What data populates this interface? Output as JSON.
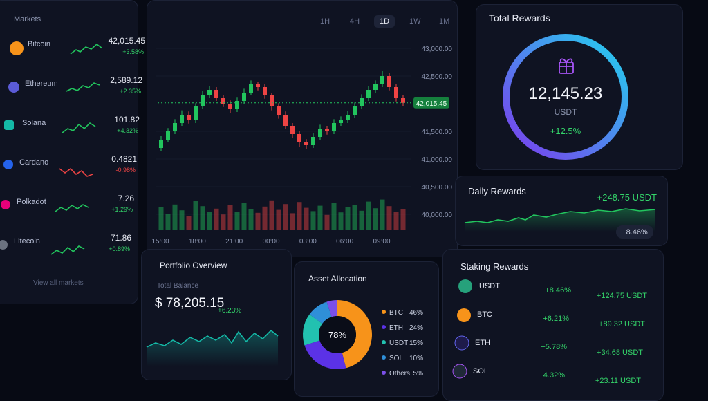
{
  "markets": {
    "title": "Markets",
    "items": [
      {
        "name": "Bitcoin",
        "price": "42,015.45",
        "change": "+3.58%"
      },
      {
        "name": "Ethereum",
        "price": "2,589.12",
        "change": "+2.35%"
      },
      {
        "name": "Solana",
        "price": "101.82",
        "change": "+4.32%"
      },
      {
        "name": "Cardano",
        "price": "0.4821",
        "change": "-0.98%"
      },
      {
        "name": "Polkadot",
        "price": "7.26",
        "change": "+1.29%"
      },
      {
        "name": "Litecoin",
        "price": "71.86",
        "change": "+0.89%"
      }
    ],
    "footer": "View all markets"
  },
  "price_chart": {
    "type": "candlestick",
    "timeframes": [
      "1H",
      "4H",
      "1D",
      "1W",
      "1M"
    ],
    "active_timeframe": "1D",
    "ylim": [
      40000,
      43000
    ],
    "yticks": [
      {
        "value": 43000,
        "label": "43,000.00"
      },
      {
        "value": 42500,
        "label": "42,500.00"
      },
      {
        "value": 41500,
        "label": "41,500.00"
      },
      {
        "value": 41000,
        "label": "41,000.00"
      },
      {
        "value": 40500,
        "label": "40,500.00"
      },
      {
        "value": 40000,
        "label": "40,000.00"
      }
    ],
    "last_price": {
      "value": 42015.45,
      "label": "42,015.45"
    },
    "xticks": [
      "15:00",
      "18:00",
      "21:00",
      "00:00",
      "03:00",
      "06:00",
      "09:00"
    ],
    "up_color": "#22c55e",
    "down_color": "#ef4444",
    "candles": [
      [
        41200,
        41420,
        41150,
        41350
      ],
      [
        41350,
        41560,
        41300,
        41500
      ],
      [
        41500,
        41720,
        41450,
        41650
      ],
      [
        41650,
        41880,
        41600,
        41800
      ],
      [
        41800,
        41860,
        41640,
        41700
      ],
      [
        41700,
        42010,
        41650,
        41950
      ],
      [
        41950,
        42230,
        41900,
        42150
      ],
      [
        42150,
        42320,
        42100,
        42250
      ],
      [
        42250,
        42300,
        42050,
        42100
      ],
      [
        42100,
        42160,
        41940,
        42000
      ],
      [
        42000,
        42060,
        41830,
        41900
      ],
      [
        41900,
        42110,
        41850,
        42050
      ],
      [
        42050,
        42270,
        42000,
        42200
      ],
      [
        42200,
        42420,
        42150,
        42350
      ],
      [
        42350,
        42400,
        42240,
        42300
      ],
      [
        42300,
        42360,
        42090,
        42150
      ],
      [
        42150,
        42200,
        41880,
        41950
      ],
      [
        41950,
        42010,
        41730,
        41800
      ],
      [
        41800,
        41860,
        41540,
        41600
      ],
      [
        41600,
        41650,
        41380,
        41450
      ],
      [
        41450,
        41500,
        41220,
        41300
      ],
      [
        41300,
        41360,
        41180,
        41250
      ],
      [
        41250,
        41470,
        41200,
        41400
      ],
      [
        41400,
        41620,
        41350,
        41550
      ],
      [
        41550,
        41600,
        41440,
        41500
      ],
      [
        41500,
        41720,
        41450,
        41650
      ],
      [
        41650,
        41770,
        41600,
        41700
      ],
      [
        41700,
        41870,
        41650,
        41800
      ],
      [
        41800,
        42020,
        41750,
        41950
      ],
      [
        41950,
        42170,
        41900,
        42100
      ],
      [
        42100,
        42320,
        42050,
        42250
      ],
      [
        42250,
        42420,
        42200,
        42350
      ],
      [
        42350,
        42600,
        42300,
        42500
      ],
      [
        42500,
        42560,
        42240,
        42300
      ],
      [
        42300,
        42350,
        42040,
        42100
      ],
      [
        42100,
        42160,
        41960,
        42015
      ]
    ],
    "vlim": [
      0,
      100
    ],
    "volume": [
      55,
      40,
      62,
      48,
      35,
      70,
      58,
      44,
      52,
      38,
      60,
      45,
      66,
      50,
      42,
      57,
      72,
      49,
      63,
      41,
      68,
      54,
      46,
      59,
      37,
      65,
      43,
      56,
      61,
      47,
      69,
      53,
      74,
      58,
      45,
      50
    ]
  },
  "total_rewards": {
    "title": "Total Rewards",
    "value": "12,145.23",
    "unit": "USDT",
    "change": "+12.5%"
  },
  "daily_rewards": {
    "title": "Daily Rewards",
    "value": "+248.75 USDT",
    "change": "+8.46%"
  },
  "portfolio": {
    "title": "Portfolio Overview",
    "label": "Total Balance",
    "value": "$ 78,205.15",
    "change": "+6.23%"
  },
  "asset_allocation": {
    "type": "pie",
    "title": "Asset Allocation",
    "center_label": "78%",
    "categories": [
      "BTC",
      "ETH",
      "USDT",
      "SOL",
      "Others"
    ],
    "values": [
      46,
      24,
      15,
      10,
      5
    ],
    "value_labels": [
      "46%",
      "24%",
      "15%",
      "10%",
      "5%"
    ],
    "colors": [
      "#f7931a",
      "#5b32e6",
      "#22c1b0",
      "#2f8fd8",
      "#7b4fe8"
    ]
  },
  "staking": {
    "title": "Staking Rewards",
    "rows": [
      {
        "asset": "USDT",
        "rate": "+8.46%",
        "amount": "+124.75 USDT"
      },
      {
        "asset": "BTC",
        "rate": "+6.21%",
        "amount": "+89.32 USDT"
      },
      {
        "asset": "ETH",
        "rate": "+5.78%",
        "amount": "+34.68 USDT"
      },
      {
        "asset": "SOL",
        "rate": "+4.32%",
        "amount": "+23.11 USDT"
      }
    ]
  }
}
